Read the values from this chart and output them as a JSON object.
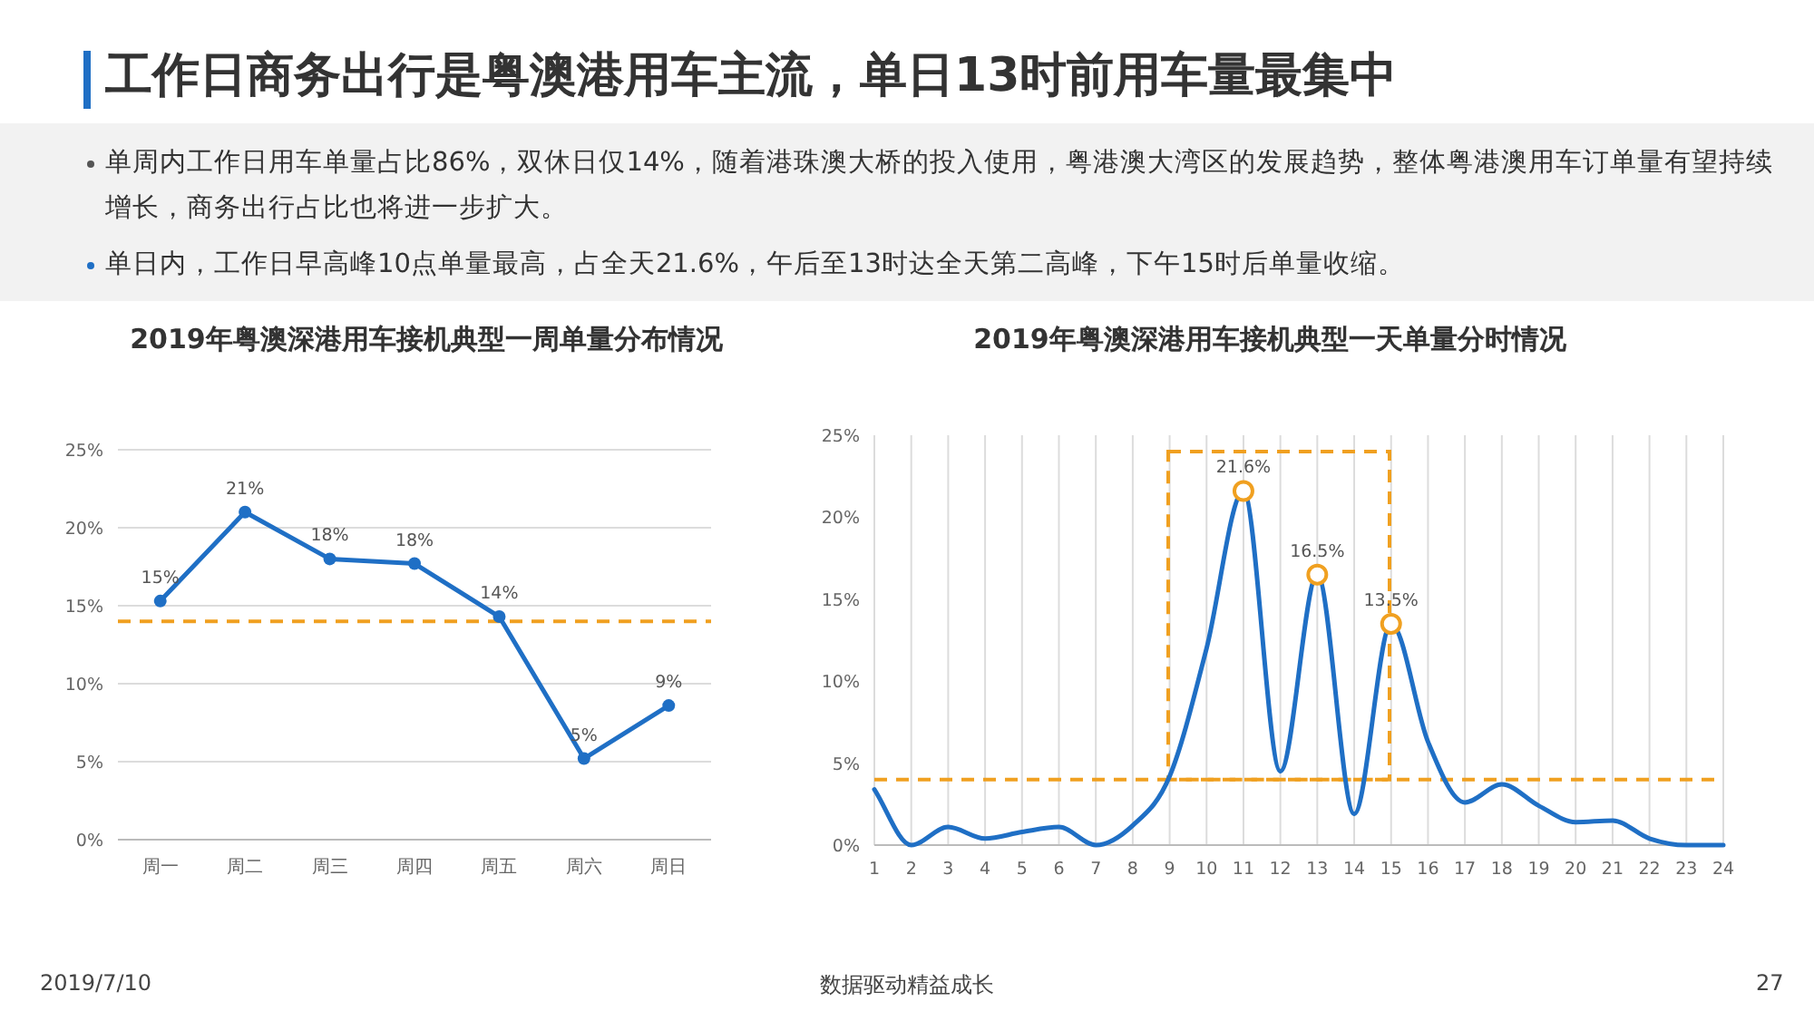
{
  "chart_data": [
    {
      "type": "other",
      "title": "工作日商务出行是粤澳港用车主流，单日13时前用车量最集中",
      "annotations": [
        "单周内工作日用车单量占比86%，双休日仅14%，随着港珠澳大桥的投入使用，粤港澳大湾区的发展趋势，整体粤港澳用车订单量有望持续增长，商务出行占比也将进一步扩大。",
        "单日内，工作日早高峰10点单量最高，占全天21.6%，午后至13时达全天第二高峰，下午15时后单量收缩。",
        "2019/7/10",
        "数据驱动精益成长",
        "27"
      ]
    },
    {
      "type": "line",
      "title": "2019年粤澳深港用车接机典型一周单量分布情况",
      "categories": [
        "周一",
        "周二",
        "周三",
        "周四",
        "周五",
        "周六",
        "周日"
      ],
      "ylim": [
        0,
        25
      ],
      "yticks": [
        {
          "value": 0,
          "label": "0%"
        },
        {
          "value": 5,
          "label": "5%"
        },
        {
          "value": 10,
          "label": "10%"
        },
        {
          "value": 15,
          "label": "15%"
        },
        {
          "value": 20,
          "label": "20%"
        },
        {
          "value": 25,
          "label": "25%"
        }
      ],
      "grid": "y",
      "marker": "circle",
      "line_style": "solid",
      "series": [
        {
          "color": "#1f6fc5",
          "values": [
            15.3,
            21,
            18,
            17.7,
            14.3,
            5.2,
            8.6
          ],
          "value_labels": [
            "15%",
            "21%",
            "18%",
            "18%",
            "14%",
            "5%",
            "9%"
          ]
        }
      ],
      "ref_lines": [
        {
          "axis": "y",
          "value": 14,
          "color": "#f0a020",
          "line_style": "dashed"
        }
      ]
    },
    {
      "type": "line",
      "title": "2019年粤澳深港用车接机典型一天单量分时情况",
      "xlim": [
        1,
        24
      ],
      "xticks": [
        1,
        2,
        3,
        4,
        5,
        6,
        7,
        8,
        9,
        10,
        11,
        12,
        13,
        14,
        15,
        16,
        17,
        18,
        19,
        20,
        21,
        22,
        23,
        24
      ],
      "ylim": [
        0,
        25
      ],
      "yticks": [
        {
          "value": 0,
          "label": "0%"
        },
        {
          "value": 5,
          "label": "5%"
        },
        {
          "value": 10,
          "label": "10%"
        },
        {
          "value": 15,
          "label": "15%"
        },
        {
          "value": 20,
          "label": "20%"
        },
        {
          "value": 25,
          "label": "25%"
        }
      ],
      "grid": "x",
      "line_style": "solid",
      "series": [
        {
          "type": "line",
          "color": "#1f6fc5",
          "x": [
            1,
            2,
            3,
            4,
            5,
            6,
            7,
            8,
            9,
            10,
            11,
            12,
            13,
            14,
            15,
            16,
            17,
            18,
            19,
            20,
            21,
            22,
            23,
            24
          ],
          "values": [
            3.4,
            0,
            1.1,
            0.4,
            0.8,
            1.1,
            0,
            1.2,
            4.2,
            12,
            21.6,
            4.5,
            16.5,
            1.9,
            13.5,
            6.3,
            2.6,
            3.7,
            2.4,
            1.4,
            1.5,
            0.4,
            0,
            0
          ]
        },
        {
          "type": "scatter",
          "color": "#f0a020",
          "marker": "circle",
          "x": [
            11,
            13,
            15
          ],
          "values": [
            21.6,
            16.5,
            13.5
          ],
          "value_labels": [
            "21.6%",
            "16.5%",
            "13.5%"
          ]
        }
      ],
      "ref_lines": [
        {
          "axis": "y",
          "value": 4,
          "color": "#f0a020",
          "line_style": "dashed"
        }
      ]
    }
  ]
}
